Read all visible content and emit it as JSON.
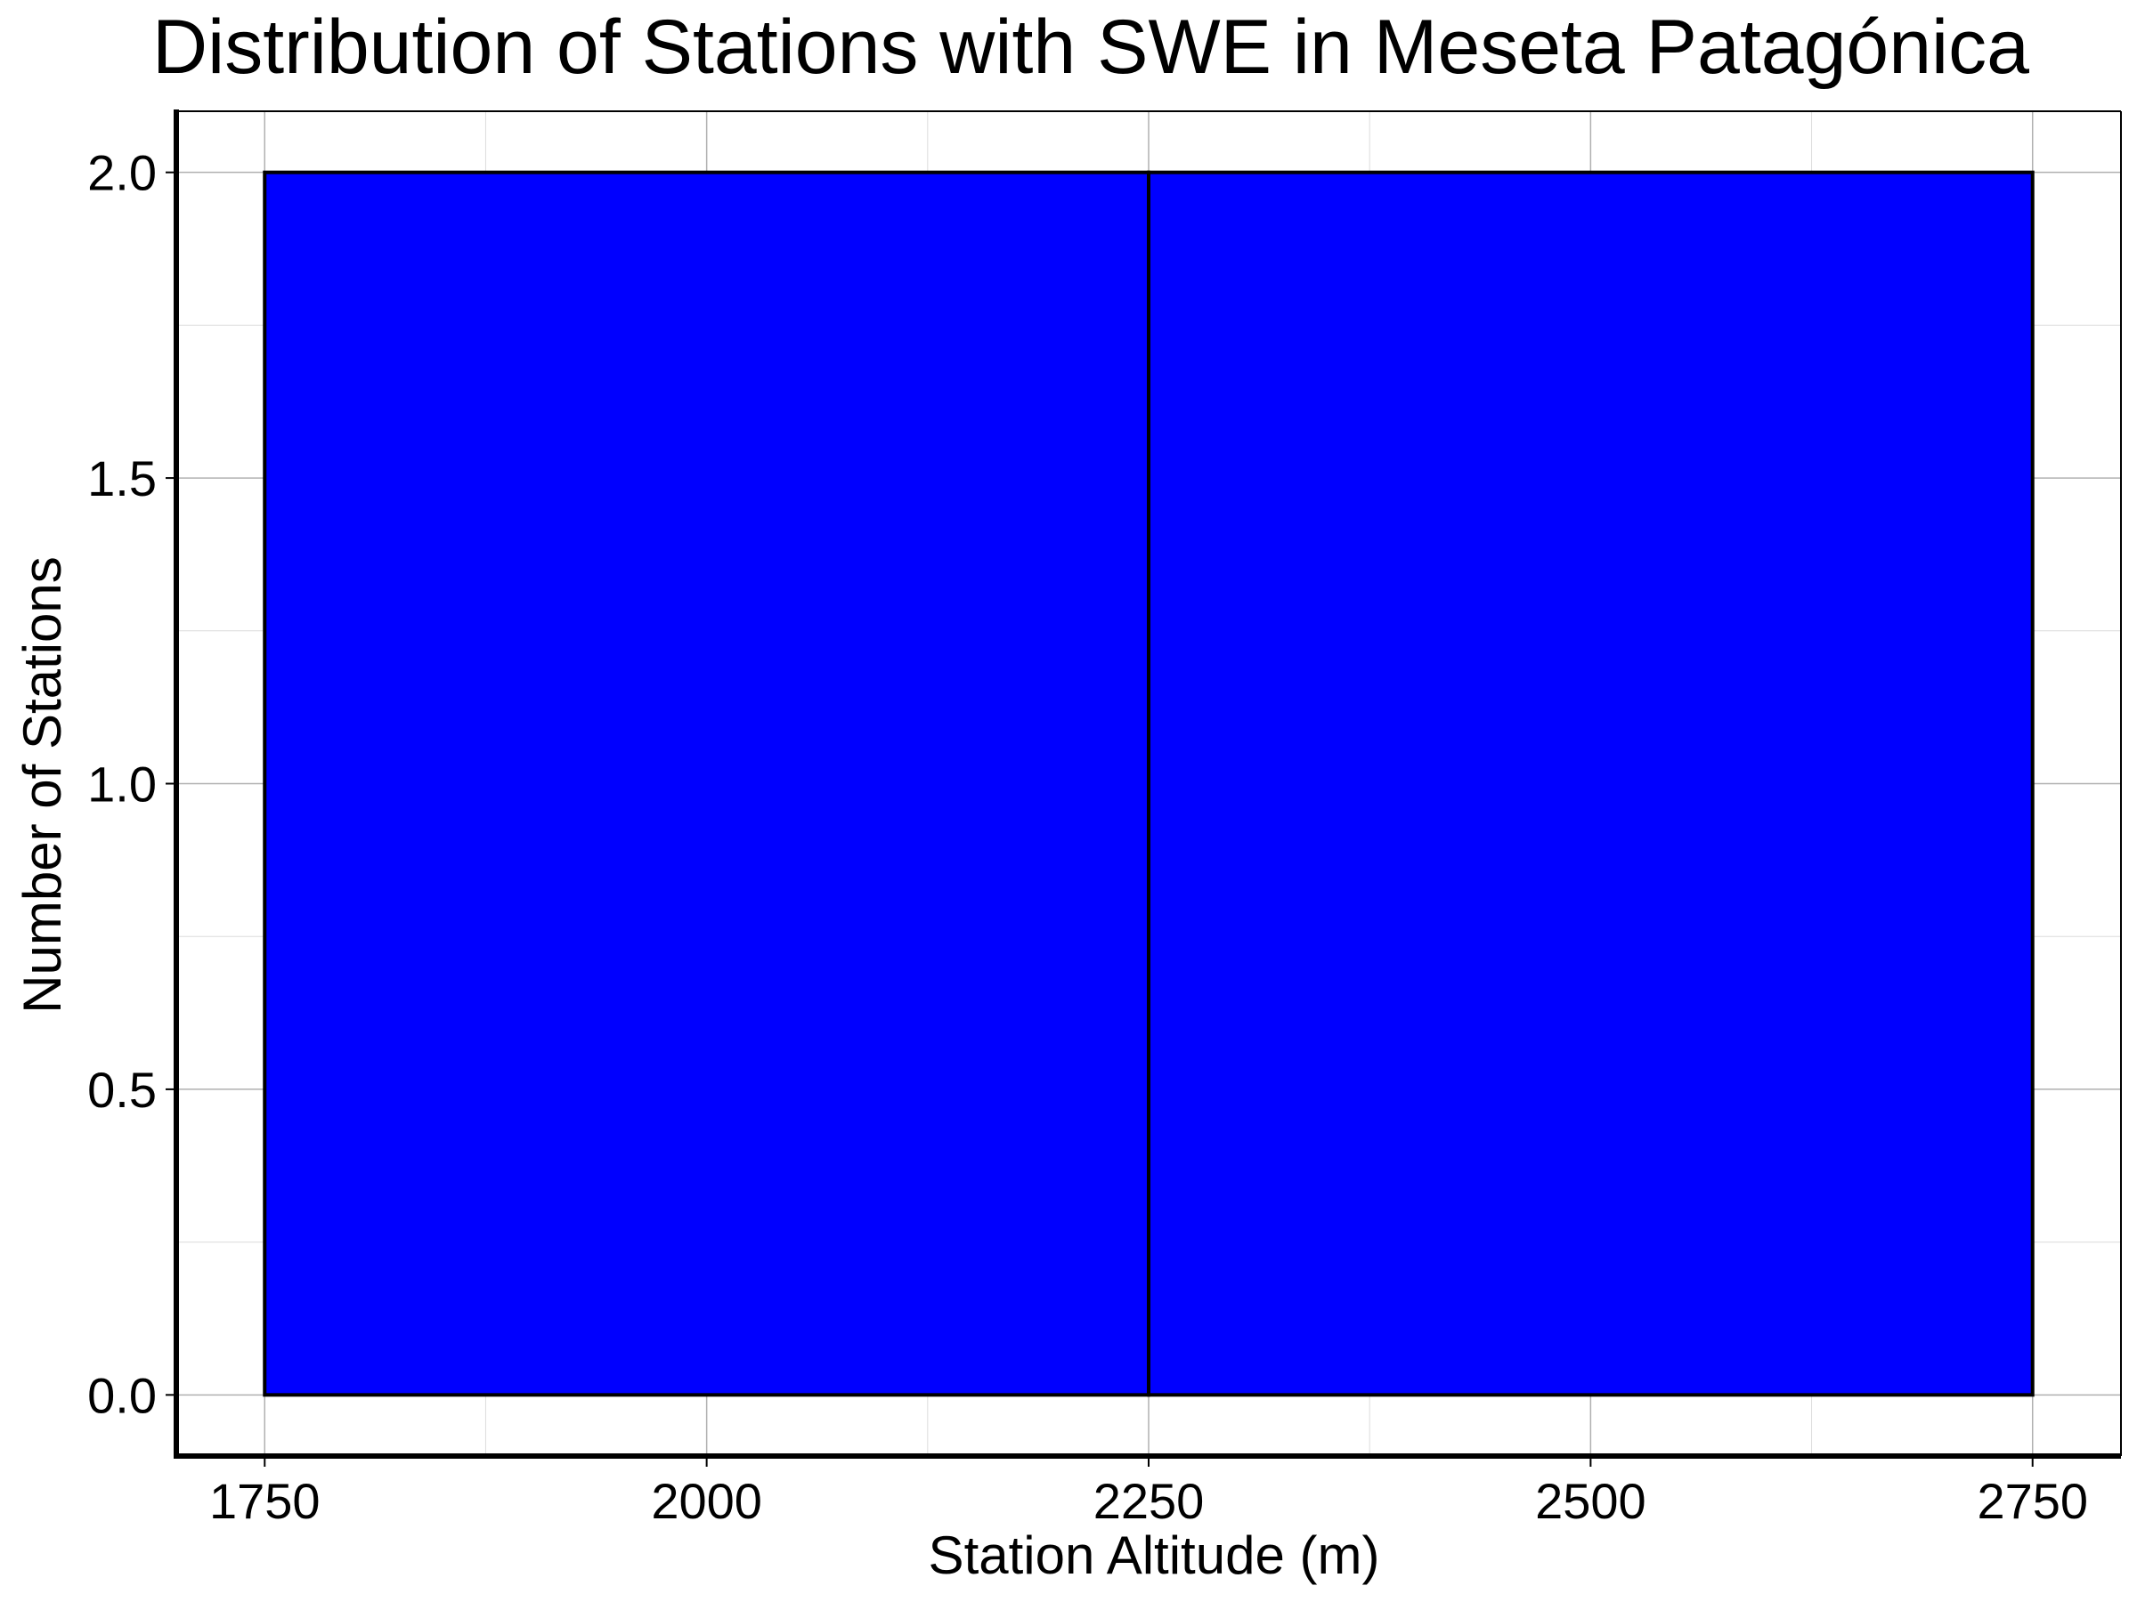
{
  "chart_data": {
    "type": "bar",
    "title": "Distribution of Stations with SWE in Meseta Patagónica",
    "xlabel": "Station Altitude (m)",
    "ylabel": "Number of Stations",
    "bins": [
      {
        "start": 1750,
        "end": 2250,
        "count": 2
      },
      {
        "start": 2250,
        "end": 2750,
        "count": 2
      }
    ],
    "xlim": [
      1700,
      2800
    ],
    "ylim": [
      -0.1,
      2.1
    ],
    "x_ticks": [
      "1750",
      "2000",
      "2250",
      "2500",
      "2750"
    ],
    "y_ticks": [
      "0.0",
      "0.5",
      "1.0",
      "1.5",
      "2.0"
    ],
    "grid": true,
    "bar_color": "#0000ff",
    "edge_color": "#000000"
  }
}
